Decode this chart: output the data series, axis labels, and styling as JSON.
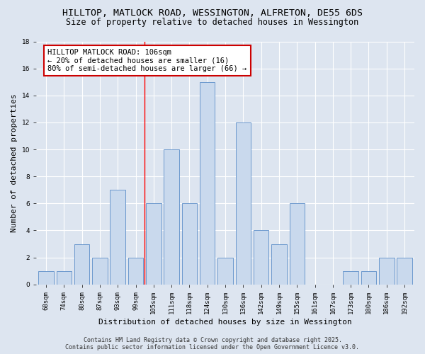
{
  "title_line1": "HILLTOP, MATLOCK ROAD, WESSINGTON, ALFRETON, DE55 6DS",
  "title_line2": "Size of property relative to detached houses in Wessington",
  "xlabel": "Distribution of detached houses by size in Wessington",
  "ylabel": "Number of detached properties",
  "categories": [
    "68sqm",
    "74sqm",
    "80sqm",
    "87sqm",
    "93sqm",
    "99sqm",
    "105sqm",
    "111sqm",
    "118sqm",
    "124sqm",
    "130sqm",
    "136sqm",
    "142sqm",
    "149sqm",
    "155sqm",
    "161sqm",
    "167sqm",
    "173sqm",
    "180sqm",
    "186sqm",
    "192sqm"
  ],
  "values": [
    1,
    1,
    3,
    2,
    7,
    2,
    6,
    10,
    6,
    15,
    2,
    12,
    4,
    3,
    6,
    0,
    0,
    1,
    1,
    2,
    2
  ],
  "bar_color": "#c9d9ed",
  "bar_edge_color": "#5b8dc8",
  "red_line_index": 6,
  "annotation_text": "HILLTOP MATLOCK ROAD: 106sqm\n← 20% of detached houses are smaller (16)\n80% of semi-detached houses are larger (66) →",
  "annotation_box_color": "#ffffff",
  "annotation_box_edge": "#cc0000",
  "ylim": [
    0,
    18
  ],
  "yticks": [
    0,
    2,
    4,
    6,
    8,
    10,
    12,
    14,
    16,
    18
  ],
  "background_color": "#dde5f0",
  "footer_line1": "Contains HM Land Registry data © Crown copyright and database right 2025.",
  "footer_line2": "Contains public sector information licensed under the Open Government Licence v3.0.",
  "title_fontsize": 9.5,
  "subtitle_fontsize": 8.5,
  "axis_label_fontsize": 8,
  "tick_fontsize": 6.5,
  "annotation_fontsize": 7.5,
  "footer_fontsize": 6
}
